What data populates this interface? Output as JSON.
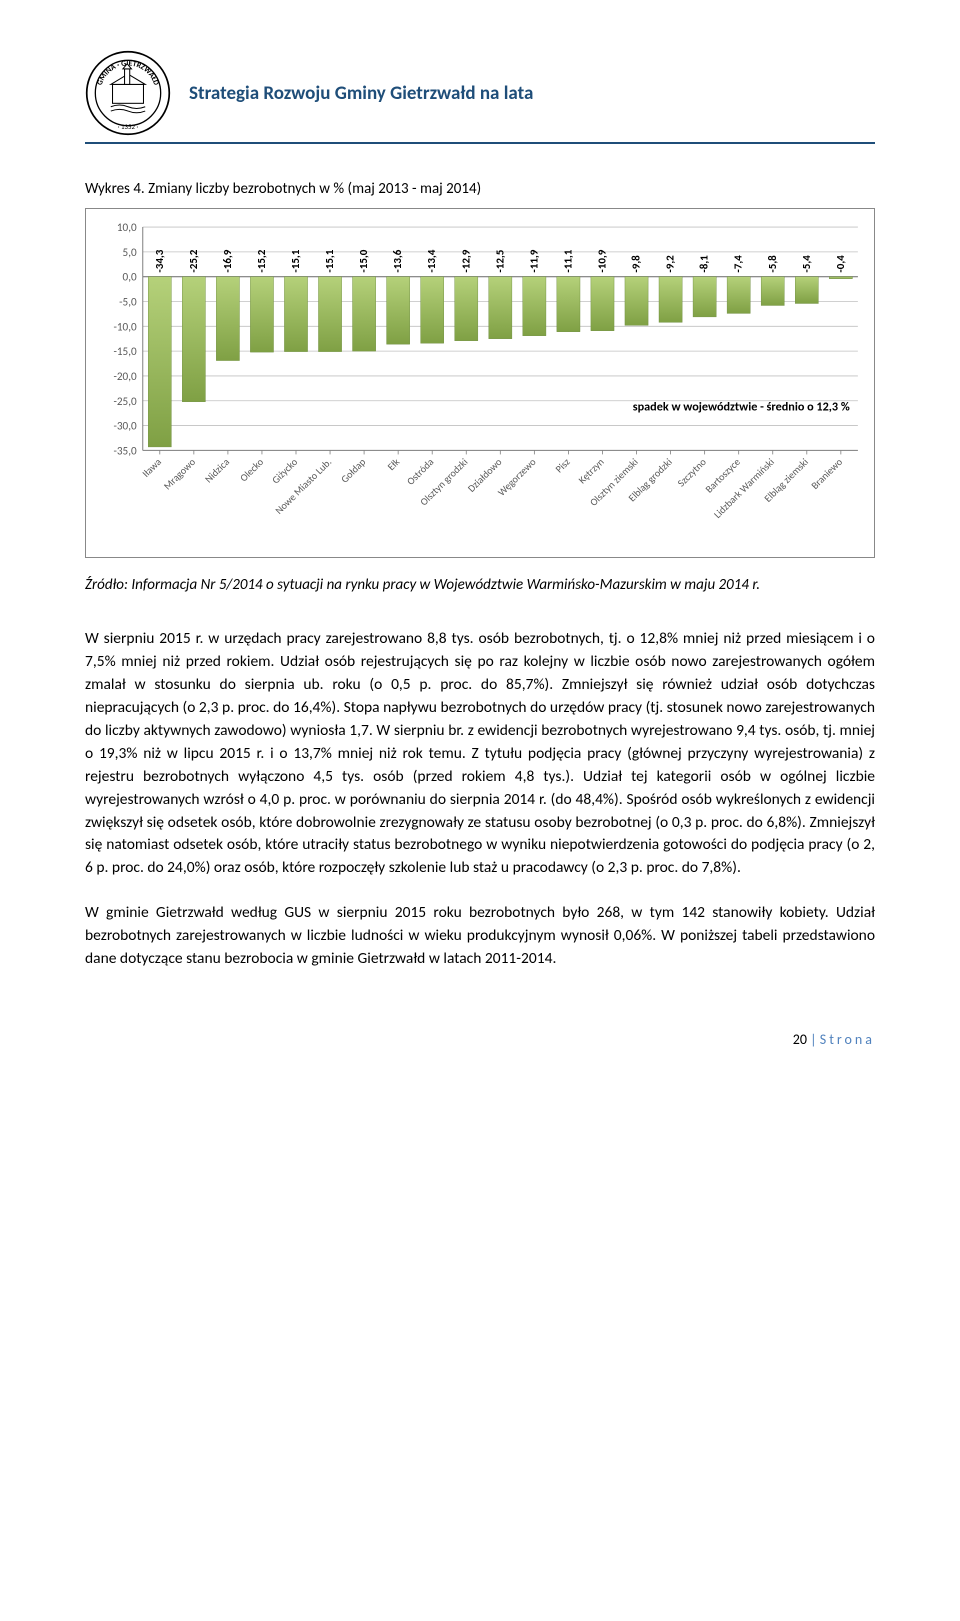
{
  "header": {
    "title": "Strategia Rozwoju Gminy Gietrzwałd na lata",
    "rule_color": "#1f4e79"
  },
  "chart": {
    "caption": "Wykres 4. Zmiany liczby bezrobotnych w % (maj 2013 - maj 2014)",
    "type": "bar",
    "categories": [
      "Iława",
      "Mrągowo",
      "Nidzica",
      "Olecko",
      "Giżycko",
      "Nowe Miasto Lub.",
      "Gołdap",
      "Ełk",
      "Ostróda",
      "Olsztyn grodzki",
      "Działdowo",
      "Węgorzewo",
      "Pisz",
      "Kętrzyn",
      "Olsztyn ziemski",
      "Elbląg grodzki",
      "Szczytno",
      "Bartoszyce",
      "Lidzbark Warmiński",
      "Elbląg ziemski",
      "Braniewo"
    ],
    "values": [
      -34.3,
      -25.2,
      -16.9,
      -15.2,
      -15.1,
      -15.1,
      -15.0,
      -13.6,
      -13.4,
      -12.9,
      -12.5,
      -11.9,
      -11.1,
      -10.9,
      -9.8,
      -9.2,
      -8.1,
      -7.4,
      -5.8,
      -5.4,
      -0.4
    ],
    "bar_fill": "#9bbb59",
    "bar_gradient_top": "#b5d17a",
    "bar_gradient_bottom": "#7fa044",
    "ylim": [
      -35,
      10
    ],
    "ytick_step": 5,
    "grid_color": "#c0c0c0",
    "axis_color": "#808080",
    "label_color": "#000000",
    "label_fontsize": 10,
    "tick_fontsize": 11,
    "annotation_text": "spadek w województwie - średnio o 12,3 %",
    "annotation_fontsize": 12,
    "annotation_bold": true,
    "background_color": "#ffffff"
  },
  "source": "Źródło: Informacja Nr 5/2014 o sytuacji na rynku pracy w Województwie Warmińsko-Mazurskim w maju 2014 r.",
  "para1": "W sierpniu 2015 r. w urzędach pracy zarejestrowano 8,8 tys. osób bezrobotnych, tj. o 12,8% mniej niż przed miesiącem i o 7,5% mniej niż przed rokiem. Udział osób rejestrujących się po raz kolejny w liczbie osób nowo zarejestrowanych ogółem zmalał w stosunku do sierpnia ub. roku (o 0,5 p. proc. do 85,7%). Zmniejszył się również udział osób dotychczas niepracujących (o 2,3 p. proc. do 16,4%). Stopa napływu bezrobotnych do urzędów pracy (tj. stosunek nowo zarejestrowanych do liczby aktywnych zawodowo) wyniosła 1,7. W sierpniu br. z ewidencji bezrobotnych wyrejestrowano 9,4 tys. osób, tj. mniej o 19,3% niż w lipcu 2015 r. i o 13,7% mniej niż rok temu. Z tytułu podjęcia pracy (głównej przyczyny wyrejestrowania) z rejestru bezrobotnych wyłączono 4,5 tys. osób (przed rokiem 4,8 tys.). Udział tej kategorii osób w ogólnej liczbie wyrejestrowanych wzrósł o 4,0 p. proc. w porównaniu do sierpnia 2014 r. (do 48,4%). Spośród osób wykreślonych z ewidencji zwiększył się odsetek osób, które dobrowolnie zrezygnowały ze statusu osoby bezrobotnej (o 0,3 p. proc. do 6,8%). Zmniejszył się natomiast odsetek osób, które utraciły status bezrobotnego w wyniku niepotwierdzenia gotowości do podjęcia pracy (o 2, 6 p. proc. do 24,0%) oraz osób, które rozpoczęły szkolenie lub staż u pracodawcy (o 2,3 p. proc. do 7,8%).",
  "para2": "W gminie Gietrzwałd według GUS w sierpniu 2015 roku bezrobotnych było 268, w tym 142 stanowiły kobiety. Udział bezrobotnych zarejestrowanych w liczbie ludności w wieku produkcyjnym wynosił 0,06%. W poniższej tabeli przedstawiono dane dotyczące stanu bezrobocia w gminie Gietrzwałd w latach 2011-2014.",
  "footer": {
    "page": "20",
    "sep": " | ",
    "word": "Strona"
  }
}
